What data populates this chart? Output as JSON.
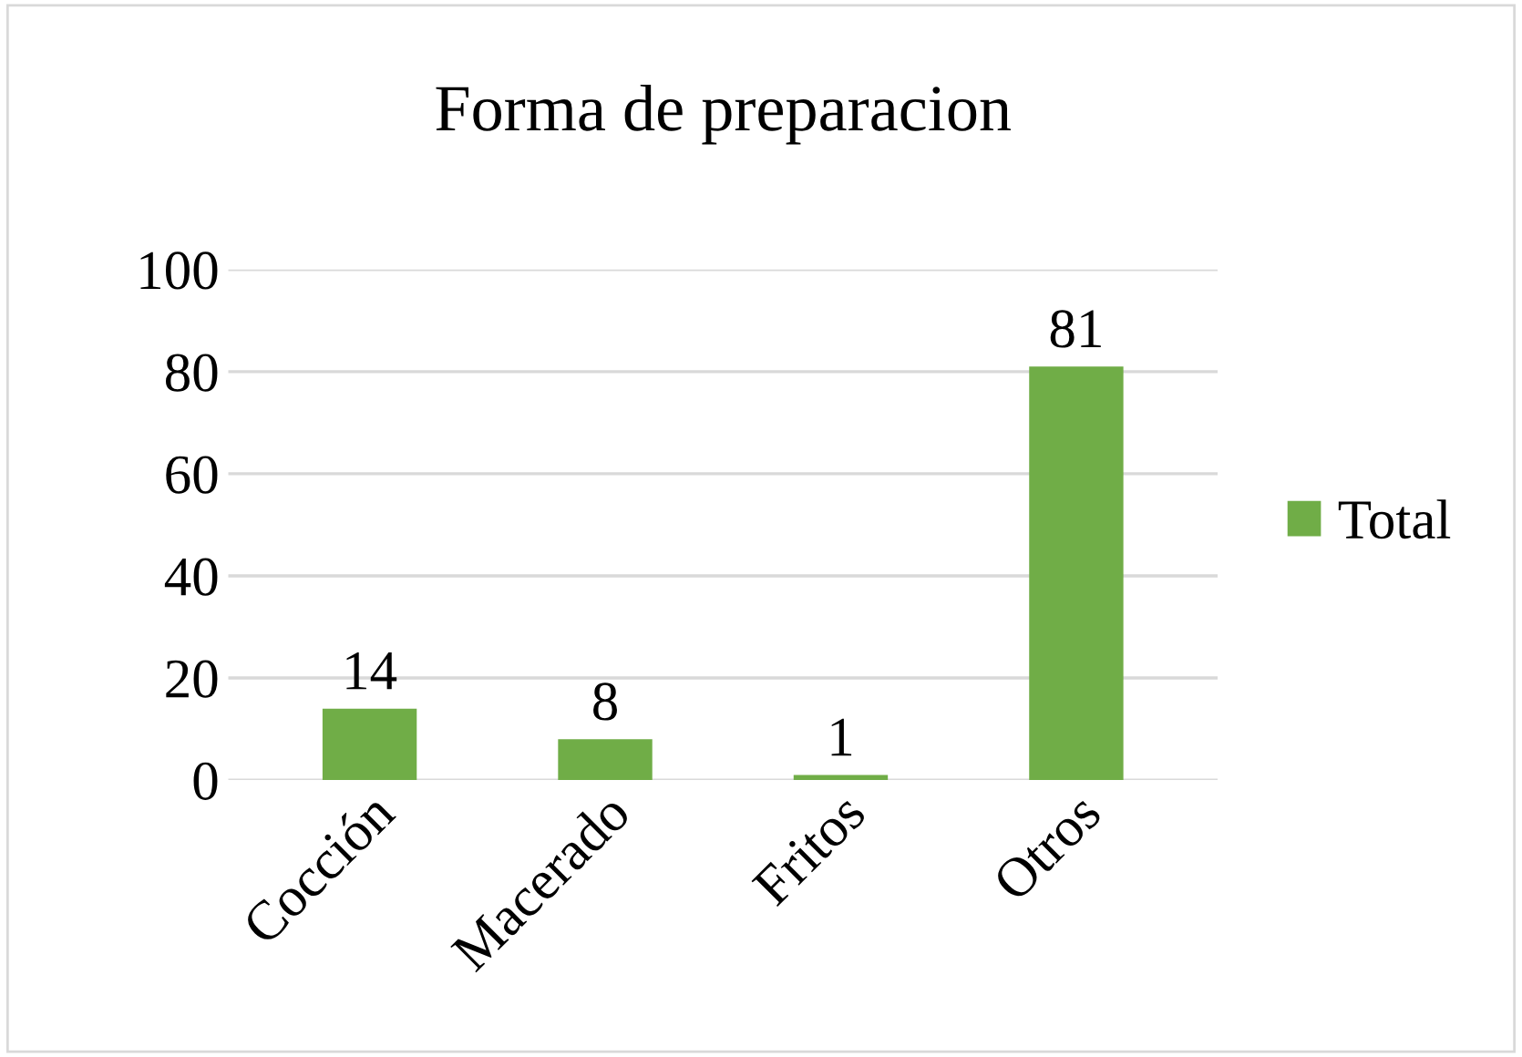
{
  "chart_data": {
    "type": "bar",
    "title": "Forma de preparacion",
    "categories": [
      "Cocción",
      "Macerado",
      "Fritos",
      "Otros"
    ],
    "series": [
      {
        "name": "Total",
        "color": "#70ad47",
        "values": [
          14,
          8,
          1,
          81
        ]
      }
    ],
    "ylim": [
      0,
      100
    ],
    "yticks": [
      0,
      20,
      40,
      60,
      80,
      100
    ],
    "grid": "y",
    "legend": "right",
    "data_labels": true
  }
}
